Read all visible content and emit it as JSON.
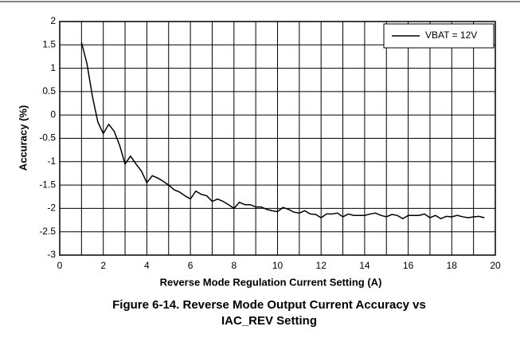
{
  "chart_data": {
    "type": "line",
    "title": [
      "Figure 6-14. Reverse Mode Output Current Accuracy vs",
      "IAC_REV Setting"
    ],
    "xlabel": "Reverse Mode Regulation Current Setting (A)",
    "ylabel": "Accuracy (%)",
    "x": [
      1,
      1.25,
      1.5,
      1.75,
      2,
      2.25,
      2.5,
      2.75,
      3,
      3.25,
      3.5,
      3.75,
      4,
      4.25,
      4.5,
      4.75,
      5,
      5.25,
      5.5,
      5.75,
      6,
      6.25,
      6.5,
      6.75,
      7,
      7.25,
      7.5,
      7.75,
      8,
      8.25,
      8.5,
      8.75,
      9,
      9.25,
      9.5,
      9.75,
      10,
      10.25,
      10.5,
      10.75,
      11,
      11.25,
      11.5,
      11.75,
      12,
      12.25,
      12.5,
      12.75,
      13,
      13.25,
      13.5,
      13.75,
      14,
      14.25,
      14.5,
      14.75,
      15,
      15.25,
      15.5,
      15.75,
      16,
      16.25,
      16.5,
      16.75,
      17,
      17.25,
      17.5,
      17.75,
      18,
      18.25,
      18.5,
      18.75,
      19,
      19.25,
      19.5
    ],
    "series": [
      {
        "name": "VBAT = 12V",
        "color": "#000000",
        "values": [
          1.55,
          1.1,
          0.4,
          -0.15,
          -0.4,
          -0.2,
          -0.35,
          -0.65,
          -1.05,
          -0.88,
          -1.05,
          -1.2,
          -1.45,
          -1.3,
          -1.35,
          -1.42,
          -1.5,
          -1.6,
          -1.65,
          -1.73,
          -1.8,
          -1.63,
          -1.7,
          -1.73,
          -1.85,
          -1.8,
          -1.85,
          -1.92,
          -2.0,
          -1.87,
          -1.92,
          -1.92,
          -1.97,
          -1.97,
          -2.02,
          -2.05,
          -2.07,
          -1.98,
          -2.02,
          -2.08,
          -2.1,
          -2.05,
          -2.12,
          -2.13,
          -2.2,
          -2.12,
          -2.12,
          -2.1,
          -2.18,
          -2.12,
          -2.15,
          -2.15,
          -2.15,
          -2.12,
          -2.1,
          -2.15,
          -2.18,
          -2.13,
          -2.15,
          -2.22,
          -2.15,
          -2.15,
          -2.15,
          -2.12,
          -2.2,
          -2.15,
          -2.22,
          -2.17,
          -2.18,
          -2.15,
          -2.18,
          -2.2,
          -2.18,
          -2.17,
          -2.2
        ]
      }
    ],
    "xlim": [
      0,
      20
    ],
    "xticks": [
      0,
      2,
      4,
      6,
      8,
      10,
      12,
      14,
      16,
      18,
      20
    ],
    "xminorticks": [
      1,
      3,
      5,
      7,
      9,
      11,
      13,
      15,
      17,
      19
    ],
    "ylim": [
      -3,
      2
    ],
    "yticks": [
      -3,
      -2.5,
      -2,
      -1.5,
      -1,
      -0.5,
      0,
      0.5,
      1,
      1.5,
      2
    ],
    "grid": true,
    "legend": "upper right"
  }
}
